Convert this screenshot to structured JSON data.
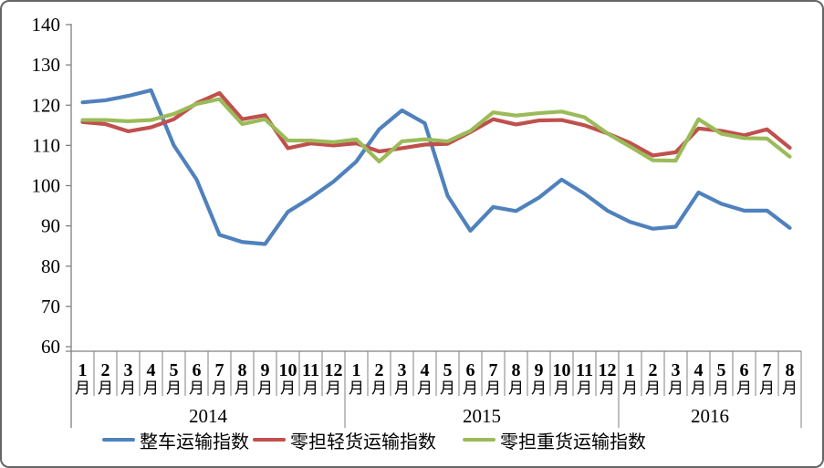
{
  "chart_data": {
    "type": "line",
    "title": "",
    "legend_position": "bottom",
    "grid": "off",
    "axis_color": "#808080",
    "y_axis": {
      "min": 60,
      "max": 140,
      "step": 10,
      "ticks": [
        140,
        130,
        120,
        110,
        100,
        90,
        80,
        70,
        60
      ]
    },
    "x_axis": {
      "month_suffix": "月",
      "years": [
        {
          "label": "2014",
          "month_numbers": [
            1,
            2,
            3,
            4,
            5,
            6,
            7,
            8,
            9,
            10,
            11,
            12
          ]
        },
        {
          "label": "2015",
          "month_numbers": [
            1,
            2,
            3,
            4,
            5,
            6,
            7,
            8,
            9,
            10,
            11,
            12
          ]
        },
        {
          "label": "2016",
          "month_numbers": [
            1,
            2,
            3,
            4,
            5,
            6,
            7,
            8
          ]
        }
      ]
    },
    "series": [
      {
        "name": "整车运输指数",
        "color": "#4F81BD",
        "values": [
          120.7,
          121.2,
          122.3,
          123.7,
          110.0,
          101.5,
          87.8,
          86.0,
          85.5,
          93.5,
          97.0,
          101.0,
          106.0,
          114.0,
          118.7,
          115.5,
          97.5,
          88.8,
          94.7,
          93.7,
          97.0,
          101.5,
          98.0,
          93.8,
          91.0,
          89.3,
          89.8,
          98.3,
          95.5,
          93.8,
          93.8,
          89.5
        ]
      },
      {
        "name": "零担轻货运输指数",
        "color": "#C0504D",
        "values": [
          115.8,
          115.3,
          113.5,
          114.5,
          116.5,
          120.5,
          123.0,
          116.5,
          117.5,
          109.3,
          110.5,
          110.0,
          110.5,
          108.5,
          109.3,
          110.2,
          110.4,
          113.3,
          116.5,
          115.2,
          116.2,
          116.3,
          115.0,
          113.0,
          110.6,
          107.5,
          108.3,
          114.2,
          113.6,
          112.5,
          114.0,
          109.4
        ]
      },
      {
        "name": "零担重货运输指数",
        "color": "#9BBB59",
        "values": [
          116.3,
          116.3,
          116.0,
          116.3,
          117.8,
          120.3,
          121.5,
          115.3,
          116.5,
          111.2,
          111.2,
          110.8,
          111.5,
          106.0,
          111.0,
          111.5,
          111.0,
          113.6,
          118.2,
          117.4,
          118.0,
          118.4,
          117.0,
          113.0,
          109.7,
          106.3,
          106.2,
          116.5,
          112.9,
          111.8,
          111.7,
          107.2
        ]
      }
    ]
  }
}
